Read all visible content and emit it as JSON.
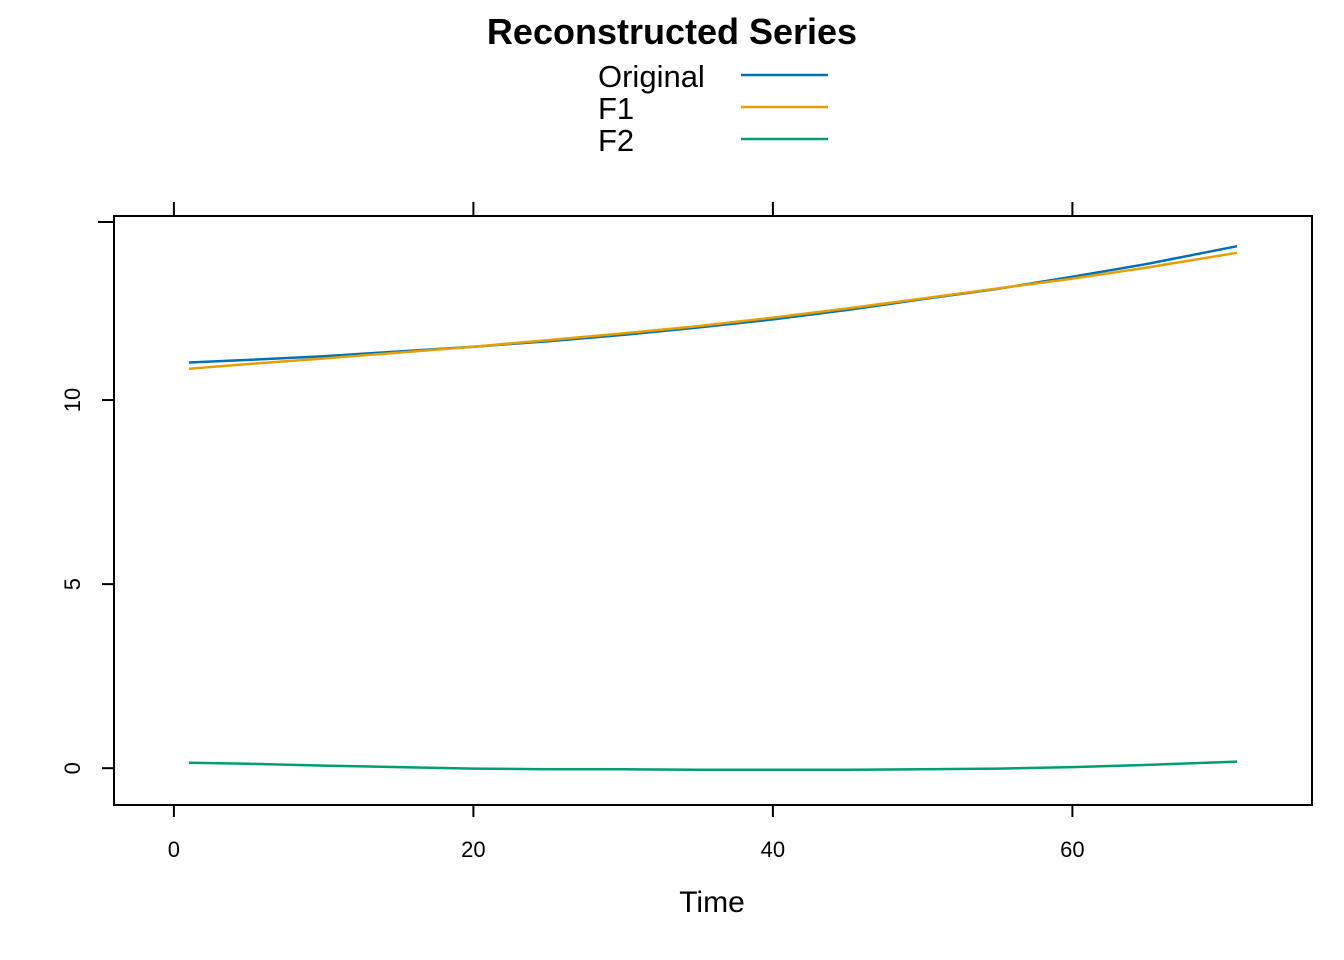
{
  "chart_data": {
    "type": "line",
    "title": "Reconstructed Series",
    "xlabel": "Time",
    "ylabel": "",
    "xlim": [
      -4,
      76
    ],
    "ylim": [
      -1,
      15
    ],
    "x_ticks": [
      0,
      20,
      40,
      60
    ],
    "y_ticks": [
      0,
      5,
      10
    ],
    "top_axis_ticks": [
      0,
      20,
      40,
      60
    ],
    "right_axis_ticks": [
      15
    ],
    "legend_position": "top-center",
    "grid": false,
    "series": [
      {
        "name": "Original",
        "color": "#0072B2",
        "x": [
          1,
          5,
          10,
          15,
          20,
          25,
          30,
          35,
          40,
          45,
          50,
          55,
          60,
          65,
          71
        ],
        "y": [
          11.02,
          11.09,
          11.19,
          11.32,
          11.45,
          11.6,
          11.77,
          11.97,
          12.19,
          12.45,
          12.74,
          13.02,
          13.35,
          13.7,
          14.18
        ]
      },
      {
        "name": "F1",
        "color": "#E69F00",
        "x": [
          1,
          5,
          10,
          15,
          20,
          25,
          30,
          35,
          40,
          45,
          50,
          55,
          60,
          65,
          71
        ],
        "y": [
          10.85,
          10.98,
          11.13,
          11.29,
          11.45,
          11.63,
          11.81,
          12.01,
          12.24,
          12.49,
          12.76,
          13.03,
          13.3,
          13.6,
          14.0
        ]
      },
      {
        "name": "F2",
        "color": "#009E73",
        "x": [
          1,
          5,
          10,
          15,
          20,
          25,
          30,
          35,
          40,
          45,
          50,
          55,
          60,
          65,
          71
        ],
        "y": [
          0.15,
          0.12,
          0.07,
          0.03,
          -0.01,
          -0.03,
          -0.03,
          -0.04,
          -0.04,
          -0.04,
          -0.03,
          -0.01,
          0.03,
          0.09,
          0.18
        ]
      }
    ]
  }
}
